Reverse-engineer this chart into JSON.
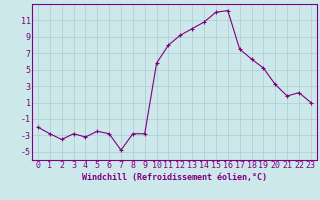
{
  "x": [
    0,
    1,
    2,
    3,
    4,
    5,
    6,
    7,
    8,
    9,
    10,
    11,
    12,
    13,
    14,
    15,
    16,
    17,
    18,
    19,
    20,
    21,
    22,
    23
  ],
  "y": [
    -2,
    -2.8,
    -3.5,
    -2.8,
    -3.2,
    -2.5,
    -2.8,
    -4.8,
    -2.8,
    -2.8,
    5.8,
    8.0,
    9.2,
    10.0,
    10.8,
    12.0,
    12.2,
    7.5,
    6.3,
    5.2,
    3.2,
    1.8,
    2.2,
    1.0
  ],
  "line_color": "#800080",
  "marker_color": "#800080",
  "bg_color": "#cce8ea",
  "grid_color": "#aacccc",
  "xlabel": "Windchill (Refroidissement éolien,°C)",
  "xlabel_fontsize": 6.0,
  "tick_fontsize": 6.0,
  "ylim": [
    -6,
    13
  ],
  "yticks": [
    -5,
    -3,
    -1,
    1,
    3,
    5,
    7,
    9,
    11
  ],
  "xlim": [
    -0.5,
    23.5
  ]
}
